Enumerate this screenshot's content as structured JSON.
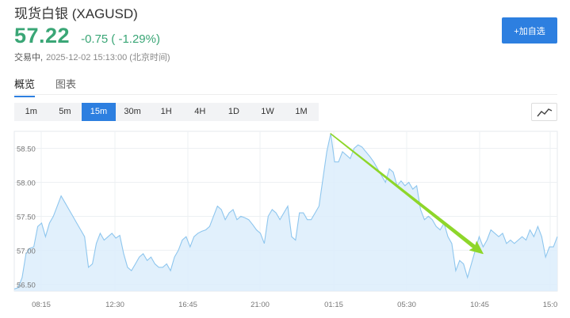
{
  "header": {
    "title": "现货白银 (XAGUSD)",
    "price": "57.22",
    "change": "-0.75",
    "change_pct": "( -1.29%)",
    "status_label": "交易中,",
    "timestamp": "2025-12-02 15:13:00 (北京时间)",
    "add_button": "+加自选"
  },
  "tabs": [
    {
      "label": "概览",
      "active": true
    },
    {
      "label": "图表",
      "active": false
    }
  ],
  "intervals": [
    {
      "label": "1m"
    },
    {
      "label": "5m"
    },
    {
      "label": "15m",
      "active": true
    },
    {
      "label": "30m"
    },
    {
      "label": "1H"
    },
    {
      "label": "4H"
    },
    {
      "label": "1D"
    },
    {
      "label": "1W"
    },
    {
      "label": "1M"
    }
  ],
  "chart_toggle_icon": "line-chart-icon",
  "colors": {
    "accent": "#2d7fe0",
    "down": "#3aa676",
    "line": "#8ec6ee",
    "fill": "#dcedfb",
    "arrow": "#8ed62a"
  },
  "chart_data": {
    "type": "area",
    "yticks": [
      "56.50",
      "57.00",
      "57.50",
      "58.00",
      "58.50"
    ],
    "ylim": [
      56.4,
      58.75
    ],
    "xticks": [
      "08:15",
      "12:30",
      "16:45",
      "21:00",
      "01:15",
      "05:30",
      "10:45",
      "15:0"
    ],
    "grid": true,
    "values": [
      56.43,
      56.45,
      56.6,
      56.95,
      57.03,
      57.05,
      57.35,
      57.4,
      57.2,
      57.4,
      57.5,
      57.65,
      57.8,
      57.7,
      57.6,
      57.5,
      57.4,
      57.3,
      57.2,
      56.75,
      56.8,
      57.1,
      57.25,
      57.15,
      57.2,
      57.25,
      57.18,
      57.22,
      56.95,
      56.75,
      56.7,
      56.8,
      56.9,
      56.95,
      56.85,
      56.9,
      56.8,
      56.75,
      56.75,
      56.8,
      56.7,
      56.9,
      57.0,
      57.15,
      57.2,
      57.05,
      57.2,
      57.25,
      57.28,
      57.3,
      57.35,
      57.5,
      57.65,
      57.6,
      57.45,
      57.55,
      57.6,
      57.45,
      57.5,
      57.48,
      57.45,
      57.38,
      57.3,
      57.25,
      57.1,
      57.5,
      57.6,
      57.55,
      57.45,
      57.55,
      57.65,
      57.2,
      57.15,
      57.55,
      57.55,
      57.45,
      57.45,
      57.55,
      57.65,
      58.05,
      58.45,
      58.72,
      58.3,
      58.3,
      58.45,
      58.4,
      58.35,
      58.5,
      58.55,
      58.52,
      58.45,
      58.38,
      58.3,
      58.2,
      58.1,
      58.0,
      58.2,
      58.15,
      57.95,
      58.02,
      57.95,
      58.0,
      57.9,
      57.95,
      57.6,
      57.45,
      57.5,
      57.45,
      57.35,
      57.3,
      57.4,
      57.2,
      57.1,
      56.7,
      56.85,
      56.8,
      56.6,
      56.8,
      57.0,
      57.2,
      57.05,
      57.15,
      57.3,
      57.25,
      57.2,
      57.25,
      57.1,
      57.15,
      57.1,
      57.15,
      57.2,
      57.15,
      57.3,
      57.2,
      57.35,
      57.2,
      56.9,
      57.05,
      57.05,
      57.2
    ],
    "annotation": {
      "type": "arrow",
      "from": [
        81,
        58.72
      ],
      "to": [
        120,
        56.95
      ]
    }
  }
}
